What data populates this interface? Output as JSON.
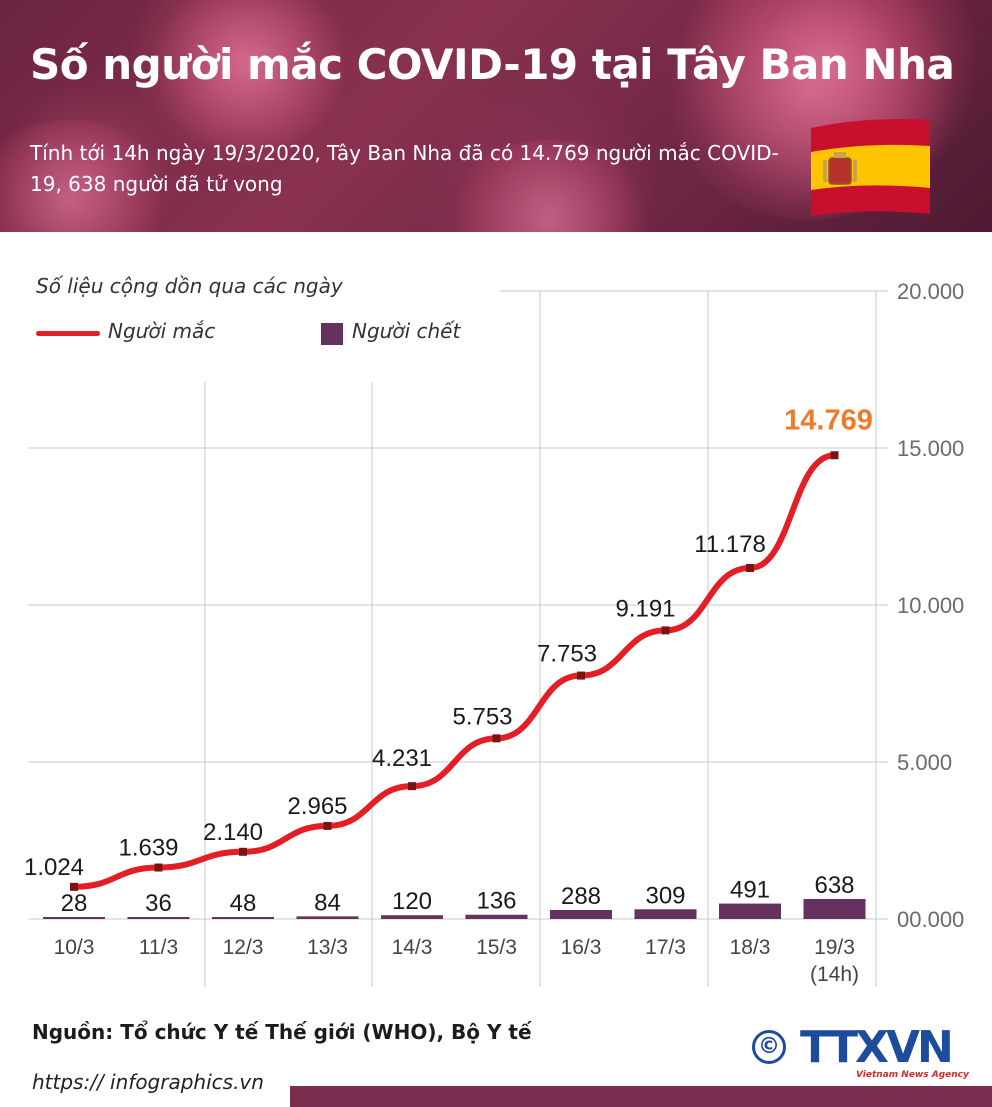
{
  "header": {
    "title": "Số người mắc COVID-19 tại Tây Ban Nha",
    "subtitle": "Tính tới 14h ngày 19/3/2020, Tây Ban Nha đã có 14.769 người mắc COVID-19, 638 người đã  tử vong"
  },
  "chart_note": "Số liệu cộng dồn qua các ngày",
  "legend": {
    "cases": "Người mắc",
    "deaths": "Người chết"
  },
  "colors": {
    "cases_line": "#e31e24",
    "deaths_bar": "#65315e",
    "highlight": "#ee7a2c",
    "header_bg": "#7a2d4e",
    "logo_blue": "#1d4c9c"
  },
  "chart_data": {
    "type": "line",
    "x_labels": [
      "10/3",
      "11/3",
      "12/3",
      "13/3",
      "14/3",
      "15/3",
      "16/3",
      "17/3",
      "18/3",
      "19/3"
    ],
    "x_labels_sub": [
      "",
      "",
      "",
      "",
      "",
      "",
      "",
      "",
      "",
      "(14h)"
    ],
    "series": [
      {
        "name": "Người mắc",
        "kind": "line",
        "values": [
          1024,
          1639,
          2140,
          2965,
          4231,
          5753,
          7753,
          9191,
          11178,
          14769
        ],
        "labels": [
          "1.024",
          "1.639",
          "2.140",
          "2.965",
          "4.231",
          "5.753",
          "7.753",
          "9.191",
          "11.178",
          "14.769"
        ]
      },
      {
        "name": "Người chết",
        "kind": "bar",
        "values": [
          28,
          36,
          48,
          84,
          120,
          136,
          288,
          309,
          491,
          638
        ],
        "labels": [
          "28",
          "36",
          "48",
          "84",
          "120",
          "136",
          "288",
          "309",
          "491",
          "638"
        ]
      }
    ],
    "yaxis": {
      "position": "right",
      "range": [
        0,
        20000
      ],
      "ticks": [
        0,
        5000,
        10000,
        15000,
        20000
      ],
      "tick_labels": [
        "00.000",
        "5.000",
        "10.000",
        "15.000",
        "20.000"
      ]
    },
    "grid": true
  },
  "footer": {
    "source": "Nguồn: Tổ chức Y tế Thế giới (WHO), Bộ Y tế",
    "website": "https:// infographics.vn",
    "copyright": "©",
    "logo": "TTXVN",
    "logo_sub": "Vietnam News Agency"
  }
}
